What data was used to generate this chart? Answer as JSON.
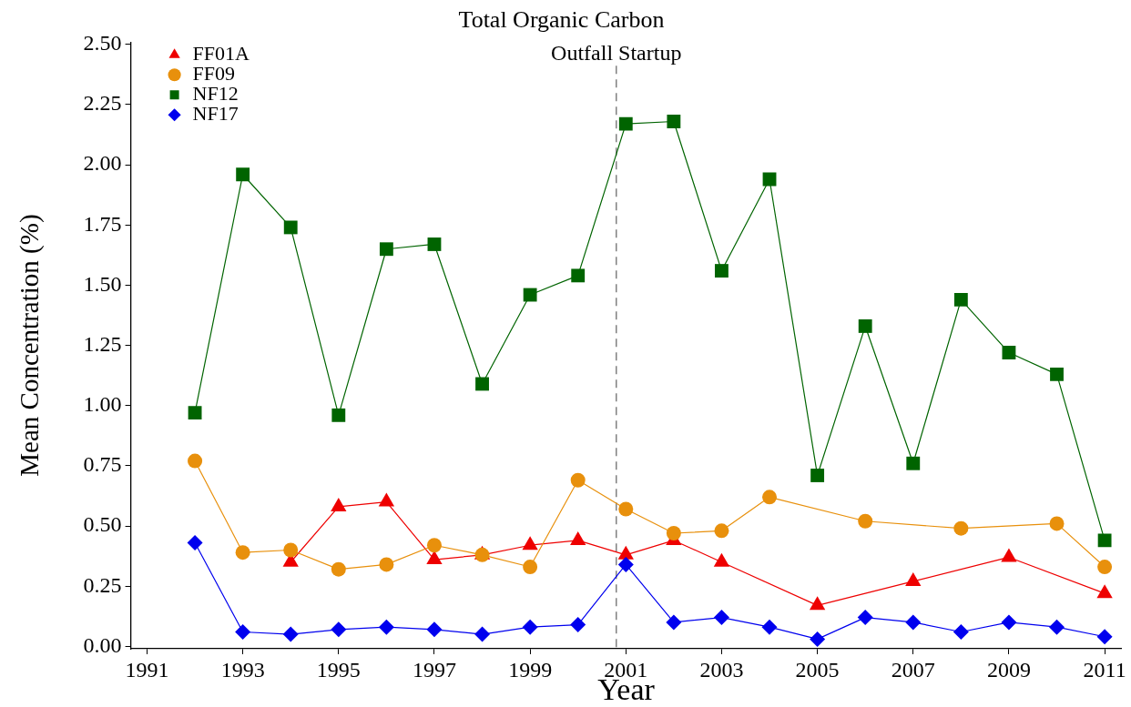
{
  "chart_data": {
    "type": "line",
    "title": "Total Organic Carbon",
    "xlabel": "Year",
    "ylabel": "Mean Concentration (%)",
    "xlim": [
      1990.66,
      2011.35
    ],
    "xticks": [
      1991,
      1993,
      1995,
      1997,
      1999,
      2001,
      2003,
      2005,
      2007,
      2009,
      2011
    ],
    "ylim": [
      -0.01,
      2.51
    ],
    "yticks": [
      {
        "value": 0,
        "label": "0.00"
      },
      0.25,
      {
        "value": 0.5,
        "label": "0.50"
      },
      0.75,
      {
        "value": 1,
        "label": "1.00"
      },
      1.25,
      {
        "value": 1.5,
        "label": "1.50"
      },
      1.75,
      {
        "value": 2,
        "label": "2.00"
      },
      2.25,
      {
        "value": 2.5,
        "label": "2.50"
      }
    ],
    "legend": "top left",
    "line_style": "solid",
    "ref_lines": [
      {
        "axis": "x",
        "value": 2000.8,
        "label": "Outfall Startup",
        "color": "#808080",
        "line_style": "dashed"
      }
    ],
    "series": [
      {
        "name": "FF01A",
        "color": "#ee0000",
        "marker": "triangle",
        "x": [
          1994,
          1995,
          1996,
          1997,
          1998,
          1999,
          2000,
          2001,
          2002,
          2003,
          2005,
          2007,
          2009,
          2011
        ],
        "values": [
          0.35,
          0.58,
          0.6,
          0.36,
          0.38,
          0.42,
          0.44,
          0.38,
          0.44,
          0.35,
          0.17,
          0.27,
          0.37,
          0.22
        ]
      },
      {
        "name": "FF09",
        "color": "#e8900c",
        "marker": "circle",
        "x": [
          1992,
          1993,
          1994,
          1995,
          1996,
          1997,
          1998,
          1999,
          2000,
          2001,
          2002,
          2003,
          2004,
          2006,
          2008,
          2010,
          2011
        ],
        "values": [
          0.77,
          0.39,
          0.4,
          0.32,
          0.34,
          0.42,
          0.38,
          0.33,
          0.69,
          0.57,
          0.47,
          0.48,
          0.62,
          0.52,
          0.49,
          0.51,
          0.33
        ]
      },
      {
        "name": "NF12",
        "color": "#006400",
        "marker": "square",
        "x": [
          1992,
          1993,
          1994,
          1995,
          1996,
          1997,
          1998,
          1999,
          2000,
          2001,
          2002,
          2003,
          2004,
          2005,
          2006,
          2007,
          2008,
          2009,
          2010,
          2011
        ],
        "values": [
          0.97,
          1.96,
          1.74,
          0.96,
          1.65,
          1.67,
          1.09,
          1.46,
          1.54,
          2.17,
          2.18,
          1.56,
          1.94,
          0.71,
          1.33,
          0.76,
          1.44,
          1.22,
          1.13,
          0.44
        ]
      },
      {
        "name": "NF17",
        "color": "#0000ee",
        "marker": "diamond",
        "x": [
          1992,
          1993,
          1994,
          1995,
          1996,
          1997,
          1998,
          1999,
          2000,
          2001,
          2002,
          2003,
          2004,
          2005,
          2006,
          2007,
          2008,
          2009,
          2010,
          2011
        ],
        "values": [
          0.43,
          0.06,
          0.05,
          0.07,
          0.08,
          0.07,
          0.05,
          0.08,
          0.09,
          0.34,
          0.1,
          0.12,
          0.08,
          0.03,
          0.12,
          0.1,
          0.06,
          0.1,
          0.08,
          0.04
        ]
      }
    ]
  }
}
